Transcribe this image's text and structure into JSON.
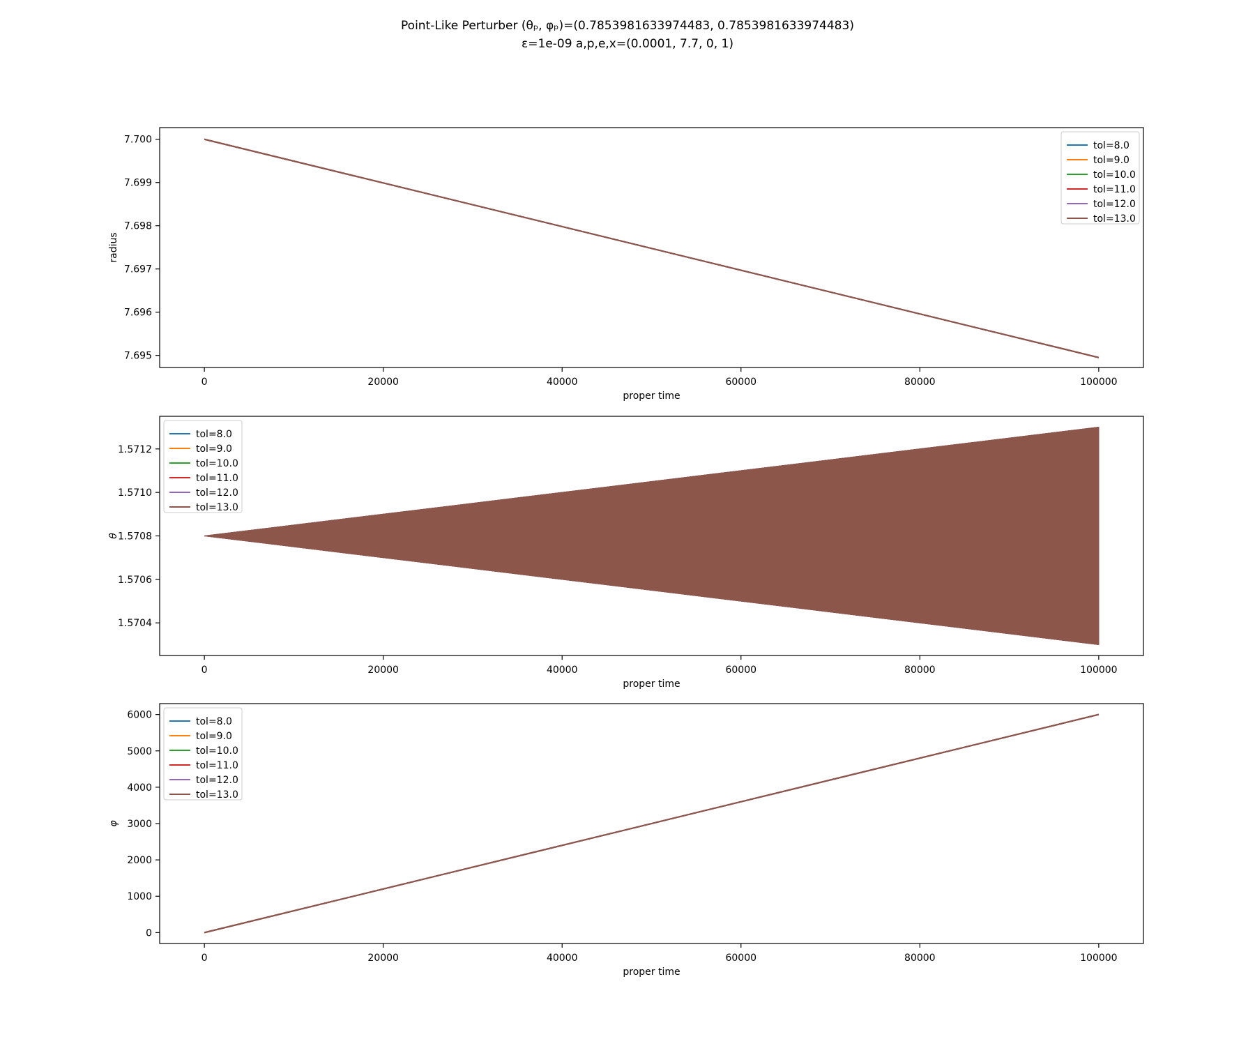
{
  "figure": {
    "title_line1": "Point-Like Perturber (θₚ, φₚ)=(0.7853981633974483, 0.7853981633974483)",
    "title_line2": "ε=1e-09 a,p,e,x=(0.0001, 7.7, 0, 1)"
  },
  "colors": {
    "tol=8.0": "#1f77b4",
    "tol=9.0": "#ff7f0e",
    "tol=10.0": "#2ca02c",
    "tol=11.0": "#d62728",
    "tol=12.0": "#9467bd",
    "tol=13.0": "#8c564b"
  },
  "chart_data": [
    {
      "type": "line",
      "xlabel": "proper time",
      "ylabel": "radius",
      "xlim": [
        -5000,
        105000
      ],
      "ylim": [
        7.69472,
        7.70027
      ],
      "xticks": [
        0,
        20000,
        40000,
        60000,
        80000,
        100000
      ],
      "yticks": [
        7.695,
        7.696,
        7.697,
        7.698,
        7.699,
        7.7
      ],
      "ytick_labels": [
        "7.695",
        "7.696",
        "7.697",
        "7.698",
        "7.699",
        "7.700"
      ],
      "legend_loc": "upper right",
      "x": [
        0,
        100000
      ],
      "series": [
        {
          "name": "tol=8.0",
          "values": [
            7.7,
            7.69495
          ]
        },
        {
          "name": "tol=9.0",
          "values": [
            7.7,
            7.69495
          ]
        },
        {
          "name": "tol=10.0",
          "values": [
            7.7,
            7.69495
          ]
        },
        {
          "name": "tol=11.0",
          "values": [
            7.7,
            7.69495
          ]
        },
        {
          "name": "tol=12.0",
          "values": [
            7.7,
            7.69495
          ]
        },
        {
          "name": "tol=13.0",
          "values": [
            7.7,
            7.69495
          ]
        }
      ]
    },
    {
      "type": "area",
      "xlabel": "proper time",
      "ylabel": "θ",
      "xlim": [
        -5000,
        105000
      ],
      "ylim": [
        1.57025,
        1.57135
      ],
      "xticks": [
        0,
        20000,
        40000,
        60000,
        80000,
        100000
      ],
      "yticks": [
        1.5704,
        1.5706,
        1.5708,
        1.571,
        1.5712
      ],
      "ytick_labels": [
        "1.5704",
        "1.5706",
        "1.5708",
        "1.5710",
        "1.5712"
      ],
      "legend_loc": "upper left",
      "x": [
        0,
        100000
      ],
      "series": [
        {
          "name": "tol=8.0",
          "upper": [
            1.5708,
            1.5713
          ],
          "lower": [
            1.5708,
            1.5703
          ]
        },
        {
          "name": "tol=9.0",
          "upper": [
            1.5708,
            1.5713
          ],
          "lower": [
            1.5708,
            1.5703
          ]
        },
        {
          "name": "tol=10.0",
          "upper": [
            1.5708,
            1.5713
          ],
          "lower": [
            1.5708,
            1.5703
          ]
        },
        {
          "name": "tol=11.0",
          "upper": [
            1.5708,
            1.5713
          ],
          "lower": [
            1.5708,
            1.5703
          ]
        },
        {
          "name": "tol=12.0",
          "upper": [
            1.5708,
            1.5713
          ],
          "lower": [
            1.5708,
            1.5703
          ]
        },
        {
          "name": "tol=13.0",
          "upper": [
            1.5708,
            1.5713
          ],
          "lower": [
            1.5708,
            1.5703
          ]
        }
      ]
    },
    {
      "type": "line",
      "xlabel": "proper time",
      "ylabel": "φ",
      "xlim": [
        -5000,
        105000
      ],
      "ylim": [
        -300,
        6300
      ],
      "xticks": [
        0,
        20000,
        40000,
        60000,
        80000,
        100000
      ],
      "yticks": [
        0,
        1000,
        2000,
        3000,
        4000,
        5000,
        6000
      ],
      "ytick_labels": [
        "0",
        "1000",
        "2000",
        "3000",
        "4000",
        "5000",
        "6000"
      ],
      "legend_loc": "upper left",
      "x": [
        0,
        100000
      ],
      "series": [
        {
          "name": "tol=8.0",
          "values": [
            0,
            6000
          ]
        },
        {
          "name": "tol=9.0",
          "values": [
            0,
            6000
          ]
        },
        {
          "name": "tol=10.0",
          "values": [
            0,
            6000
          ]
        },
        {
          "name": "tol=11.0",
          "values": [
            0,
            6000
          ]
        },
        {
          "name": "tol=12.0",
          "values": [
            0,
            6000
          ]
        },
        {
          "name": "tol=13.0",
          "values": [
            0,
            6000
          ]
        }
      ]
    }
  ]
}
